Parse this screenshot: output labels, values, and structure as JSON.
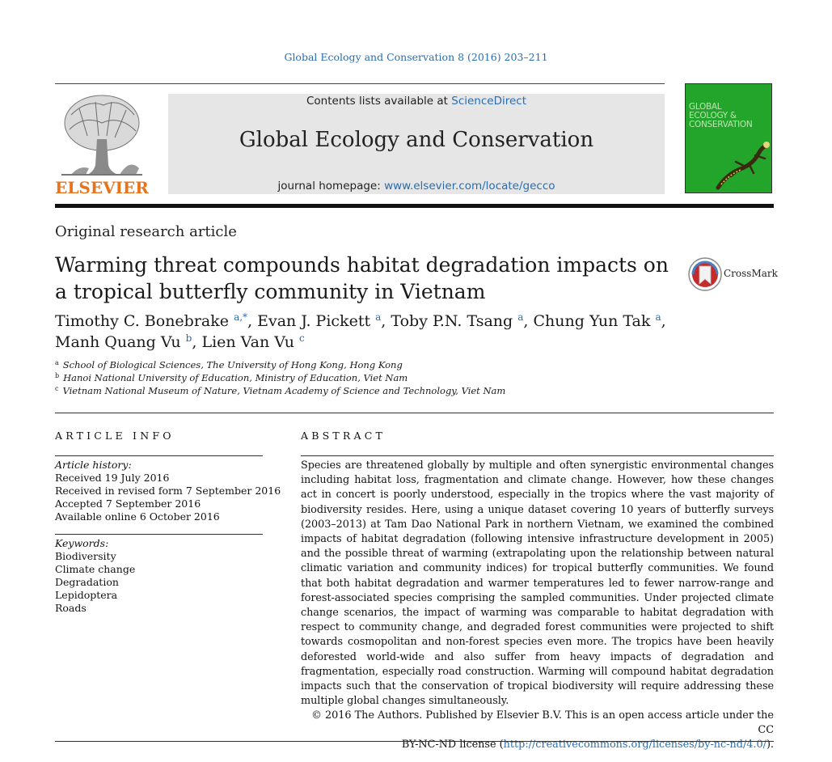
{
  "citation": "Global Ecology and Conservation 8 (2016) 203–211",
  "publisher_logo": {
    "text": "ELSEVIER",
    "icon": "tree-logo-icon"
  },
  "masthead": {
    "contents_prefix": "Contents lists available at ",
    "contents_link": "ScienceDirect",
    "journal_name": "Global Ecology and Conservation",
    "homepage_prefix": "journal homepage: ",
    "homepage_link": "www.elsevier.com/locate/gecco"
  },
  "cover": {
    "title_lines": [
      "GLOBAL",
      "ECOLOGY &",
      "CONSERVATION"
    ],
    "icon": "gecko-icon"
  },
  "article_type": "Original research article",
  "title": "Warming threat compounds habitat degradation impacts on a tropical butterfly community in Vietnam",
  "crossmark": {
    "label": "CrossMark",
    "icon": "crossmark-icon"
  },
  "authors": [
    {
      "name": "Timothy C. Bonebrake",
      "sup": "a,*",
      "sep": ", "
    },
    {
      "name": "Evan J. Pickett",
      "sup": "a",
      "sep": ", "
    },
    {
      "name": "Toby P.N. Tsang",
      "sup": "a",
      "sep": ", "
    },
    {
      "name": "Chung Yun Tak",
      "sup": "a",
      "sep": ","
    },
    {
      "name": "Manh Quang Vu",
      "sup": "b",
      "sep": ", "
    },
    {
      "name": "Lien Van Vu",
      "sup": "c",
      "sep": ""
    }
  ],
  "affiliations": [
    {
      "label": "a",
      "text": "School of Biological Sciences, The University of Hong Kong, Hong Kong"
    },
    {
      "label": "b",
      "text": "Hanoi National University of Education, Ministry of Education, Viet Nam"
    },
    {
      "label": "c",
      "text": "Vietnam National Museum of Nature, Vietnam Academy of Science and Technology, Viet Nam"
    }
  ],
  "article_info": {
    "heading": "ARTICLE INFO",
    "history_label": "Article history:",
    "history": [
      "Received 19 July 2016",
      "Received in revised form 7 September 2016",
      "Accepted 7 September 2016",
      "Available online 6 October 2016"
    ],
    "keywords_label": "Keywords:",
    "keywords": [
      "Biodiversity",
      "Climate change",
      "Degradation",
      "Lepidoptera",
      "Roads"
    ]
  },
  "abstract": {
    "heading": "ABSTRACT",
    "text": "Species are threatened globally by multiple and often synergistic environmental changes including habitat loss, fragmentation and climate change. However, how these changes act in concert is poorly understood, especially in the tropics where the vast majority of biodiversity resides. Here, using a unique dataset covering 10 years of butterfly surveys (2003–2013) at Tam Dao National Park in northern Vietnam, we examined the combined impacts of habitat degradation (following intensive infrastructure development in 2005) and the possible threat of warming (extrapolating upon the relationship between natural climatic variation and community indices) for tropical butterfly communities. We found that both habitat degradation and warmer temperatures led to fewer narrow-range and forest-associated species comprising the sampled communities. Under projected climate change scenarios, the impact of warming was comparable to habitat degradation with respect to community change, and degraded forest communities were projected to shift towards cosmopolitan and non-forest species even more. The tropics have been heavily deforested world-wide and also suffer from heavy impacts of degradation and fragmentation, especially road construction. Warming will compound habitat degradation impacts such that the conservation of tropical biodiversity will require addressing these multiple global changes simultaneously.",
    "license_line1": "© 2016 The Authors. Published by Elsevier B.V. This is an open access article under the CC",
    "license_prefix": "BY-NC-ND license (",
    "license_link": "http://creativecommons.org/licenses/by-nc-nd/4.0/",
    "license_suffix": ")."
  },
  "colors": {
    "link": "#2a6db0",
    "elsevier_orange": "#e8731a",
    "cover_green": "#22a02a",
    "masthead_gray": "#e6e6e6"
  }
}
